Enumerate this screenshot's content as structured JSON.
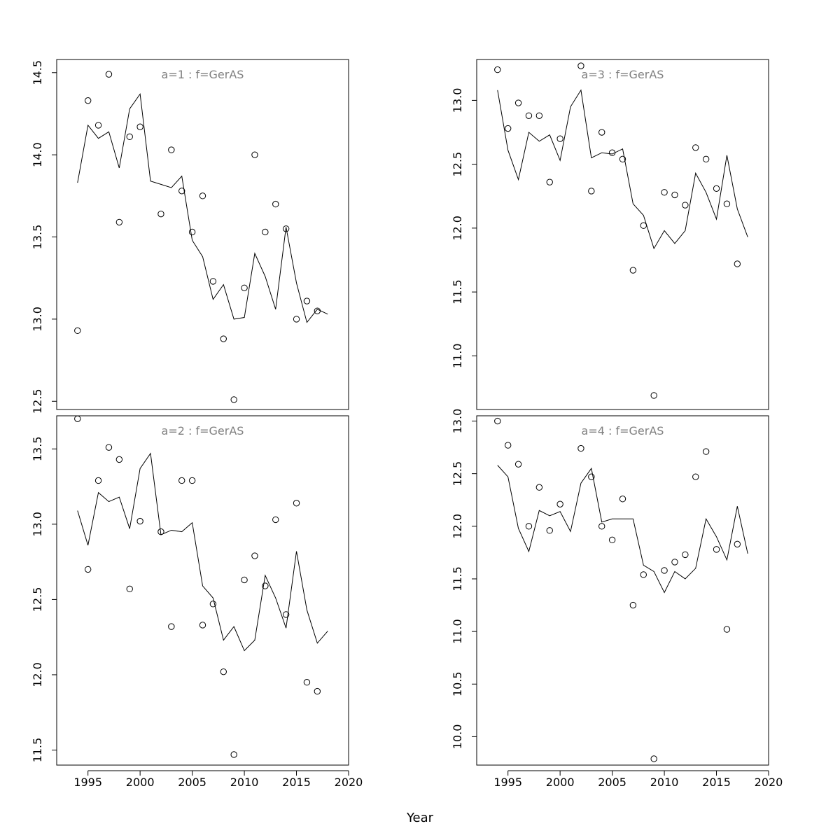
{
  "chart_data": {
    "type": "scatter",
    "xlabel": "Year",
    "xlim": [
      1992,
      2020
    ],
    "xticks": [
      1995,
      2000,
      2005,
      2010,
      2015,
      2020
    ],
    "grid": false,
    "legend": "none",
    "colors": {
      "line": "#000000",
      "points": "#000000",
      "title": "#808080"
    },
    "panels": [
      {
        "title": "a=1  :  f=GerAS",
        "ylim": [
          12.45,
          14.58
        ],
        "yticks": [
          "12.5",
          "13.0",
          "13.5",
          "14.0",
          "14.5"
        ],
        "observed": {
          "x": [
            1994,
            1995,
            1996,
            1997,
            1998,
            1999,
            2000,
            2002,
            2003,
            2004,
            2005,
            2006,
            2007,
            2008,
            2009,
            2010,
            2011,
            2012,
            2013,
            2014,
            2015,
            2016,
            2017
          ],
          "y": [
            12.93,
            14.33,
            14.18,
            14.49,
            13.59,
            14.11,
            14.17,
            13.64,
            14.03,
            13.78,
            13.53,
            13.75,
            13.23,
            12.88,
            12.51,
            13.19,
            14.0,
            13.53,
            13.7,
            13.55,
            13.0,
            13.11,
            13.05
          ]
        },
        "fitted": {
          "x": [
            1994,
            1995,
            1996,
            1997,
            1998,
            1999,
            2000,
            2001,
            2002,
            2003,
            2004,
            2005,
            2006,
            2007,
            2008,
            2009,
            2010,
            2011,
            2012,
            2013,
            2014,
            2015,
            2016,
            2017,
            2018
          ],
          "y": [
            13.83,
            14.18,
            14.1,
            14.14,
            13.92,
            14.28,
            14.37,
            13.84,
            13.82,
            13.8,
            13.87,
            13.48,
            13.38,
            13.12,
            13.21,
            13.0,
            13.01,
            13.4,
            13.26,
            13.06,
            13.56,
            13.22,
            12.98,
            13.06,
            13.03
          ]
        }
      },
      {
        "title": "a=3  :  f=GerAS",
        "ylim": [
          10.58,
          13.32
        ],
        "yticks": [
          "11.0",
          "11.5",
          "12.0",
          "12.5",
          "13.0"
        ],
        "observed": {
          "x": [
            1994,
            1995,
            1996,
            1997,
            1998,
            1999,
            2000,
            2002,
            2003,
            2004,
            2005,
            2006,
            2007,
            2008,
            2009,
            2010,
            2011,
            2012,
            2013,
            2014,
            2015,
            2016,
            2017
          ],
          "y": [
            13.24,
            12.78,
            12.98,
            12.88,
            12.88,
            12.36,
            12.7,
            13.27,
            12.29,
            12.75,
            12.59,
            12.54,
            11.67,
            12.02,
            10.69,
            12.28,
            12.26,
            12.18,
            12.63,
            12.54,
            12.31,
            12.19,
            11.72
          ]
        },
        "fitted": {
          "x": [
            1994,
            1995,
            1996,
            1997,
            1998,
            1999,
            2000,
            2001,
            2002,
            2003,
            2004,
            2005,
            2006,
            2007,
            2008,
            2009,
            2010,
            2011,
            2012,
            2013,
            2014,
            2015,
            2016,
            2017,
            2018
          ],
          "y": [
            13.08,
            12.61,
            12.38,
            12.75,
            12.68,
            12.73,
            12.53,
            12.95,
            13.08,
            12.55,
            12.59,
            12.58,
            12.62,
            12.19,
            12.1,
            11.84,
            11.98,
            11.88,
            11.98,
            12.43,
            12.28,
            12.07,
            12.57,
            12.15,
            11.93
          ]
        }
      },
      {
        "title": "a=2  :  f=GerAS",
        "ylim": [
          11.4,
          13.72
        ],
        "yticks": [
          "11.5",
          "12.0",
          "12.5",
          "13.0",
          "13.5"
        ],
        "observed": {
          "x": [
            1994,
            1995,
            1996,
            1997,
            1998,
            1999,
            2000,
            2002,
            2003,
            2004,
            2005,
            2006,
            2007,
            2008,
            2009,
            2010,
            2011,
            2012,
            2013,
            2014,
            2015,
            2016,
            2017
          ],
          "y": [
            13.7,
            12.7,
            13.29,
            13.51,
            13.43,
            12.57,
            13.02,
            12.95,
            12.32,
            13.29,
            13.29,
            12.33,
            12.47,
            12.02,
            11.47,
            12.63,
            12.79,
            12.59,
            13.03,
            12.4,
            13.14,
            11.95,
            11.89
          ]
        },
        "fitted": {
          "x": [
            1994,
            1995,
            1996,
            1997,
            1998,
            1999,
            2000,
            2001,
            2002,
            2003,
            2004,
            2005,
            2006,
            2007,
            2008,
            2009,
            2010,
            2011,
            2012,
            2013,
            2014,
            2015,
            2016,
            2017,
            2018
          ],
          "y": [
            13.09,
            12.86,
            13.21,
            13.15,
            13.18,
            12.97,
            13.37,
            13.47,
            12.93,
            12.96,
            12.95,
            13.01,
            12.59,
            12.51,
            12.23,
            12.32,
            12.16,
            12.23,
            12.66,
            12.51,
            12.31,
            12.82,
            12.43,
            12.21,
            12.29
          ]
        }
      },
      {
        "title": "a=4  :  f=GerAS",
        "ylim": [
          9.73,
          13.05
        ],
        "yticks": [
          "10.0",
          "10.5",
          "11.0",
          "11.5",
          "12.0",
          "12.5",
          "13.0"
        ],
        "observed": {
          "x": [
            1994,
            1995,
            1996,
            1997,
            1998,
            1999,
            2000,
            2002,
            2003,
            2004,
            2005,
            2006,
            2007,
            2008,
            2009,
            2010,
            2011,
            2012,
            2013,
            2014,
            2015,
            2016,
            2017
          ],
          "y": [
            13.0,
            12.77,
            12.59,
            12.0,
            12.37,
            11.96,
            12.21,
            12.74,
            12.47,
            12.0,
            11.87,
            12.26,
            11.25,
            11.54,
            9.79,
            11.58,
            11.66,
            11.73,
            12.47,
            12.71,
            11.78,
            11.02,
            11.83
          ]
        },
        "fitted": {
          "x": [
            1994,
            1995,
            1996,
            1997,
            1998,
            1999,
            2000,
            2001,
            2002,
            2003,
            2004,
            2005,
            2006,
            2007,
            2008,
            2009,
            2010,
            2011,
            2012,
            2013,
            2014,
            2015,
            2016,
            2017,
            2018
          ],
          "y": [
            12.58,
            12.47,
            11.98,
            11.76,
            12.15,
            12.1,
            12.14,
            11.95,
            12.41,
            12.55,
            12.04,
            12.07,
            12.07,
            12.07,
            11.63,
            11.57,
            11.37,
            11.57,
            11.5,
            11.6,
            12.07,
            11.9,
            11.68,
            12.19,
            11.74
          ]
        }
      }
    ]
  }
}
